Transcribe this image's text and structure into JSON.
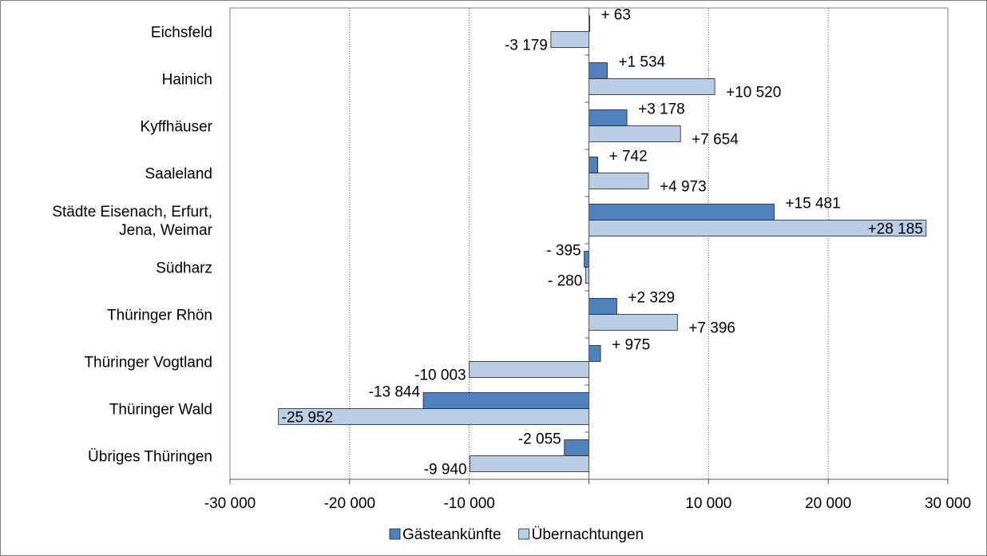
{
  "chart_data": {
    "type": "bar",
    "orientation": "horizontal",
    "categories": [
      "Eichsfeld",
      "Hainich",
      "Kyffhäuser",
      "Saaleland",
      "Städte Eisenach, Erfurt, Jena, Weimar",
      "Südharz",
      "Thüringer Rhön",
      "Thüringer Vogtland",
      "Thüringer Wald",
      "Übriges Thüringen"
    ],
    "category_lines": [
      [
        "Eichsfeld"
      ],
      [
        "Hainich"
      ],
      [
        "Kyffhäuser"
      ],
      [
        "Saaleland"
      ],
      [
        "Städte Eisenach, Erfurt,",
        "Jena, Weimar"
      ],
      [
        "Südharz"
      ],
      [
        "Thüringer Rhön"
      ],
      [
        "Thüringer Vogtland"
      ],
      [
        "Thüringer Wald"
      ],
      [
        "Übriges Thüringen"
      ]
    ],
    "series": [
      {
        "name": "Gästeankünfte",
        "color": "#4f81bd",
        "values": [
          63,
          1534,
          3178,
          742,
          15481,
          -395,
          2329,
          975,
          -13844,
          -2055
        ],
        "labels": [
          "+ 63",
          "+1 534",
          "+3 178",
          "+ 742",
          "+15 481",
          "- 395",
          "+2 329",
          "+ 975",
          "-13 844",
          "-2 055"
        ]
      },
      {
        "name": "Übernachtungen",
        "color": "#b9cde5",
        "values": [
          -3179,
          10520,
          7654,
          4973,
          28185,
          -280,
          7396,
          -10003,
          -25952,
          -9940
        ],
        "labels": [
          "-3 179",
          "+10 520",
          "+7 654",
          "+4 973",
          "+28 185",
          "- 280",
          "+7 396",
          "-10 003",
          "-25 952",
          "-9 940"
        ]
      }
    ],
    "xlim": [
      -30000,
      30000
    ],
    "xticks": [
      -30000,
      -20000,
      -10000,
      0,
      10000,
      20000,
      30000
    ],
    "xtick_labels": [
      "-30 000",
      "-20 000",
      "-10 000",
      "",
      "10 000",
      "20 000",
      "30 000"
    ],
    "grid": "vertical dotted",
    "legend_position": "bottom",
    "title": "",
    "xlabel": "",
    "ylabel": ""
  }
}
